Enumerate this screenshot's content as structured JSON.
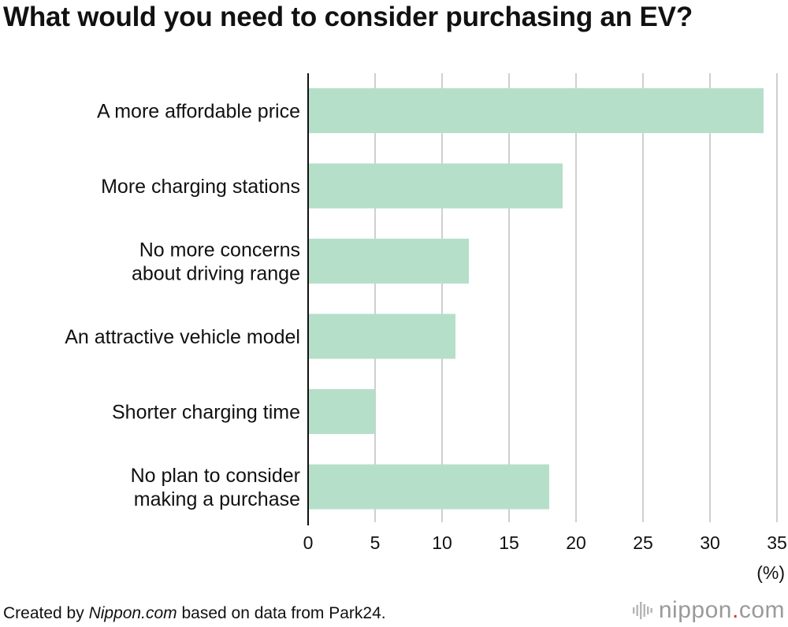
{
  "page": {
    "title": "What would you need to consider purchasing an EV?",
    "footer": {
      "prefix": "Created by ",
      "source_site": "Nippon.com",
      "suffix": " based on data from Park24."
    },
    "logo": {
      "brand": "nippon",
      "dot": ".",
      "tld": "com"
    }
  },
  "colors": {
    "bar": "#b6dfc9",
    "grid": "#cfcfcf",
    "axis": "#111111"
  },
  "chart_data": {
    "type": "bar",
    "orientation": "horizontal",
    "title": "What would you need to consider purchasing an EV?",
    "categories": [
      [
        "A more affordable price"
      ],
      [
        "More charging stations"
      ],
      [
        "No more concerns",
        "about driving range"
      ],
      [
        "An attractive vehicle model"
      ],
      [
        "Shorter charging time"
      ],
      [
        "No plan to consider",
        "making a purchase"
      ]
    ],
    "values": [
      34,
      19,
      12,
      11,
      5,
      18
    ],
    "xlim": [
      0,
      35
    ],
    "xticks": [
      0,
      5,
      10,
      15,
      20,
      25,
      30,
      35
    ],
    "xlabel": "(%)",
    "ylabel": "",
    "grid": true
  }
}
